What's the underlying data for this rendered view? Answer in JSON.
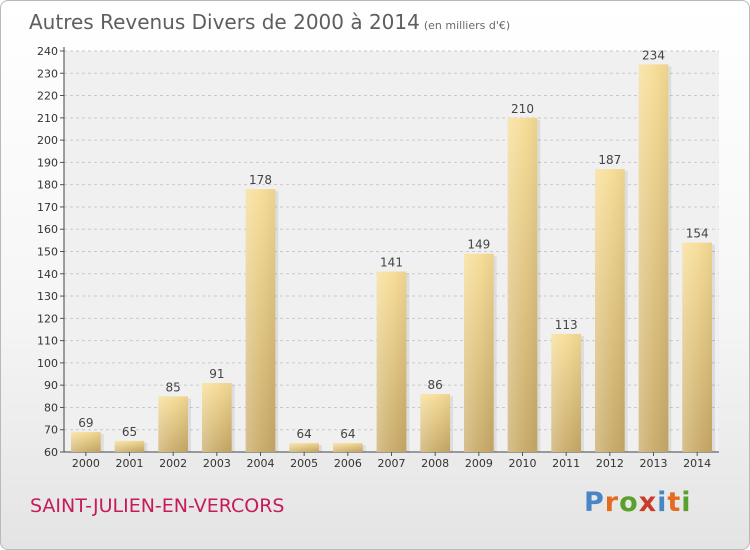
{
  "chart_data": {
    "type": "bar",
    "title": "Autres Revenus Divers de 2000 à 2014",
    "subtitle": "(en milliers d'€)",
    "categories": [
      "2000",
      "2001",
      "2002",
      "2003",
      "2004",
      "2005",
      "2006",
      "2007",
      "2008",
      "2009",
      "2010",
      "2011",
      "2012",
      "2013",
      "2014"
    ],
    "values": [
      69,
      65,
      85,
      91,
      178,
      64,
      64,
      141,
      86,
      149,
      210,
      113,
      187,
      234,
      154
    ],
    "xlabel": "",
    "ylabel": "",
    "ylim": [
      60,
      240
    ],
    "ytick_step": 10,
    "grid": true,
    "bar_color": "#e2c77e"
  },
  "footer": {
    "location": "SAINT-JULIEN-EN-VERCORS",
    "location_color": "#c71a5a",
    "brand": "Proxiti",
    "brand_colors": [
      "#4a86c5",
      "#e46b1f",
      "#5aa02c",
      "#c93b2a",
      "#4a86c5",
      "#e46b1f",
      "#5aa02c"
    ]
  }
}
